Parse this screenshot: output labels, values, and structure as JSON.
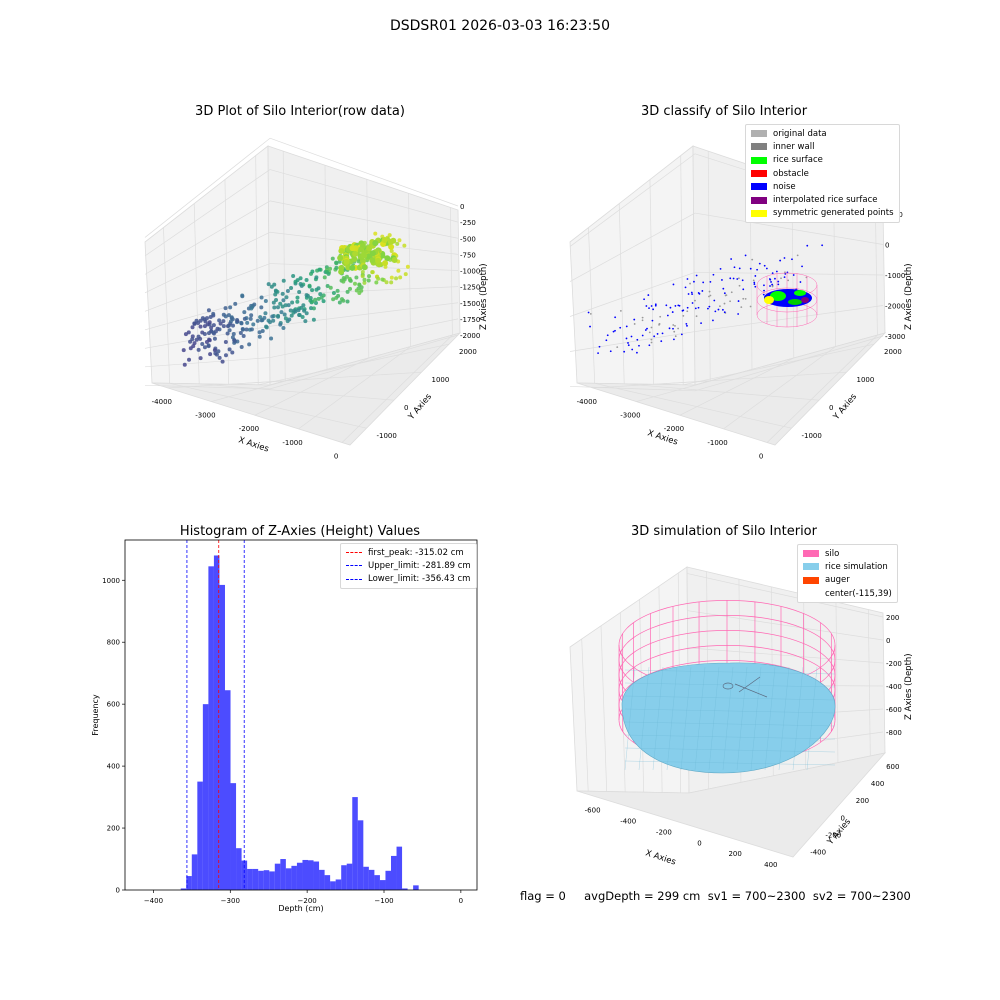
{
  "suptitle": "DSDSR01 2026-03-03 16:23:50",
  "plot1": {
    "title": "3D Plot of Silo Interior(row data)",
    "xlabel": "X Axies",
    "ylabel": "Y Axies",
    "zlabel": "Z Axies (Depth)",
    "xticks": [
      "-4000",
      "-3000",
      "-2000",
      "-1000",
      "0"
    ],
    "yticks": [
      "-1000",
      "0",
      "1000",
      "2000"
    ],
    "zticks": [
      "0",
      "-250",
      "-500",
      "-750",
      "-1000",
      "-1250",
      "-1500",
      "-1750",
      "-2000"
    ]
  },
  "plot2": {
    "title": "3D classify of Silo Interior",
    "xlabel": "X Axies",
    "ylabel": "Y Axies",
    "zlabel": "Z Axies (Depth)",
    "xticks": [
      "-4000",
      "-3000",
      "-2000",
      "-1000",
      "0"
    ],
    "yticks": [
      "-1000",
      "0",
      "1000",
      "2000"
    ],
    "zticks": [
      "1000",
      "0",
      "-1000",
      "-2000",
      "-3000"
    ],
    "legend": [
      {
        "label": "original data",
        "color": "#b0b0b0"
      },
      {
        "label": "inner wall",
        "color": "#808080"
      },
      {
        "label": "rice surface",
        "color": "#00ff00"
      },
      {
        "label": "obstacle",
        "color": "#ff0000"
      },
      {
        "label": "noise",
        "color": "#0000ff"
      },
      {
        "label": "interpolated rice surface",
        "color": "#800080"
      },
      {
        "label": "symmetric generated points",
        "color": "#ffff00"
      }
    ]
  },
  "plot4": {
    "title": "3D simulation of Silo Interior",
    "xlabel": "X Axies",
    "ylabel": "Y Axies",
    "zlabel": "Z Axies (Depth)",
    "xticks": [
      "-600",
      "-400",
      "-200",
      "0",
      "200",
      "400"
    ],
    "yticks": [
      "-400",
      "-200",
      "0",
      "200",
      "400",
      "600"
    ],
    "zticks": [
      "200",
      "0",
      "-200",
      "-400",
      "-600",
      "-800"
    ],
    "legend": [
      {
        "label": "silo",
        "color": "#ff69b4"
      },
      {
        "label": "rice simulation",
        "color": "#87ceeb"
      },
      {
        "label": "auger",
        "color": "#ff4500"
      },
      {
        "label": "center(-115,39)",
        "color": ""
      }
    ]
  },
  "footer": "flag = 0     avgDepth = 299 cm  sv1 = 700~2300  sv2 = 700~2300",
  "chart_data": [
    {
      "type": "bar",
      "title": "Histogram of Z-Axies (Height) Values",
      "xlabel": "Depth (cm)",
      "ylabel": "Frequency",
      "bar_color": "#0000ff",
      "bin_width": 7.2,
      "xlim": [
        -437,
        21
      ],
      "ylim": [
        0,
        1130
      ],
      "xticks": [
        -400,
        -300,
        -200,
        -100,
        0
      ],
      "yticks": [
        0,
        200,
        400,
        600,
        800,
        1000
      ],
      "grid": false,
      "legend_position": "top-right",
      "bins": [
        [
          -364.5,
          5
        ],
        [
          -357.3,
          45
        ],
        [
          -350.1,
          115
        ],
        [
          -342.9,
          350
        ],
        [
          -335.7,
          600
        ],
        [
          -328.5,
          1045
        ],
        [
          -321.3,
          1080
        ],
        [
          -314.1,
          985
        ],
        [
          -306.9,
          645
        ],
        [
          -299.7,
          345
        ],
        [
          -292.5,
          135
        ],
        [
          -285.3,
          95
        ],
        [
          -278.1,
          68
        ],
        [
          -270.9,
          68
        ],
        [
          -263.7,
          62
        ],
        [
          -256.5,
          64
        ],
        [
          -249.3,
          60
        ],
        [
          -242.1,
          85
        ],
        [
          -234.9,
          100
        ],
        [
          -227.7,
          70
        ],
        [
          -220.5,
          78
        ],
        [
          -213.3,
          88
        ],
        [
          -206.1,
          97
        ],
        [
          -198.9,
          96
        ],
        [
          -191.7,
          92
        ],
        [
          -184.5,
          65
        ],
        [
          -177.3,
          48
        ],
        [
          -170.1,
          28
        ],
        [
          -162.9,
          34
        ],
        [
          -155.7,
          80
        ],
        [
          -148.5,
          85
        ],
        [
          -141.3,
          300
        ],
        [
          -134.1,
          225
        ],
        [
          -126.9,
          75
        ],
        [
          -119.7,
          65
        ],
        [
          -112.5,
          48
        ],
        [
          -105.3,
          32
        ],
        [
          -98.1,
          62
        ],
        [
          -90.9,
          110
        ],
        [
          -83.7,
          140
        ],
        [
          -76.5,
          5
        ],
        [
          -69.3,
          0
        ],
        [
          -62.1,
          15
        ]
      ],
      "lines": [
        {
          "label": "first_peak: -315.02 cm",
          "x": -315.02,
          "color": "#ff0000"
        },
        {
          "label": "Upper_limit: -281.89 cm",
          "x": -281.89,
          "color": "#0000ff"
        },
        {
          "label": "Lower_limit: -356.43 cm",
          "x": -356.43,
          "color": "#0000ff"
        }
      ]
    }
  ]
}
